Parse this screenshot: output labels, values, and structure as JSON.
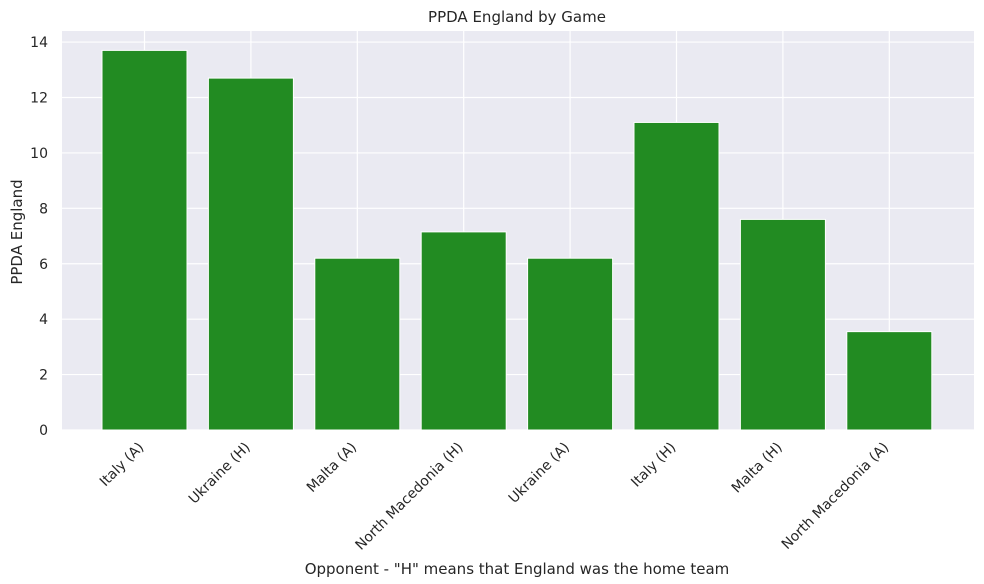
{
  "chart_data": {
    "type": "bar",
    "title": "PPDA England by Game",
    "xlabel": "Opponent - \"H\" means that England was the home team",
    "ylabel": "PPDA England",
    "categories": [
      "Italy (A)",
      "Ukraine (H)",
      "Malta (A)",
      "North Macedonia (H)",
      "Ukraine (A)",
      "Italy (H)",
      "Malta (H)",
      "North Macedonia (A)"
    ],
    "values": [
      13.7,
      12.7,
      6.2,
      7.15,
      6.2,
      11.1,
      7.6,
      3.55
    ],
    "ylim": [
      0,
      14.4
    ],
    "yticks": [
      0,
      2,
      4,
      6,
      8,
      10,
      12,
      14
    ],
    "grid": true,
    "colors": {
      "bar": "#228b22",
      "plot_bg": "#eaeaf2",
      "grid": "#ffffff"
    }
  }
}
